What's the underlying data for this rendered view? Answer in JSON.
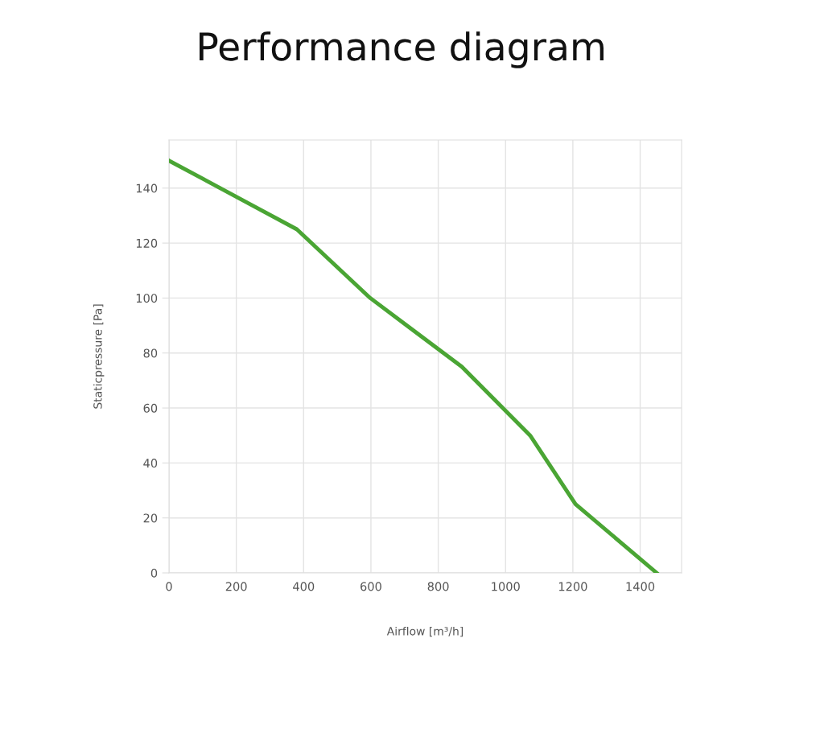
{
  "chart_data": {
    "type": "line",
    "title": "Performance diagram",
    "xlabel": "Airflow [m³/h]",
    "ylabel": "Staticpressure [Pa]",
    "x": [
      0,
      380,
      598,
      870,
      1073,
      1208,
      1449
    ],
    "series": [
      {
        "color": "#4aa534",
        "values": [
          150,
          125,
          100,
          75,
          50,
          25,
          0
        ]
      }
    ],
    "xlim": [
      0,
      1523
    ],
    "ylim": [
      0,
      157.5
    ],
    "xticks": [
      0,
      200,
      400,
      600,
      800,
      1000,
      1200,
      1400
    ],
    "yticks": [
      0,
      20,
      40,
      60,
      80,
      100,
      120,
      140
    ],
    "grid": true,
    "legend": false,
    "marker": "none",
    "line_style": "solid"
  }
}
